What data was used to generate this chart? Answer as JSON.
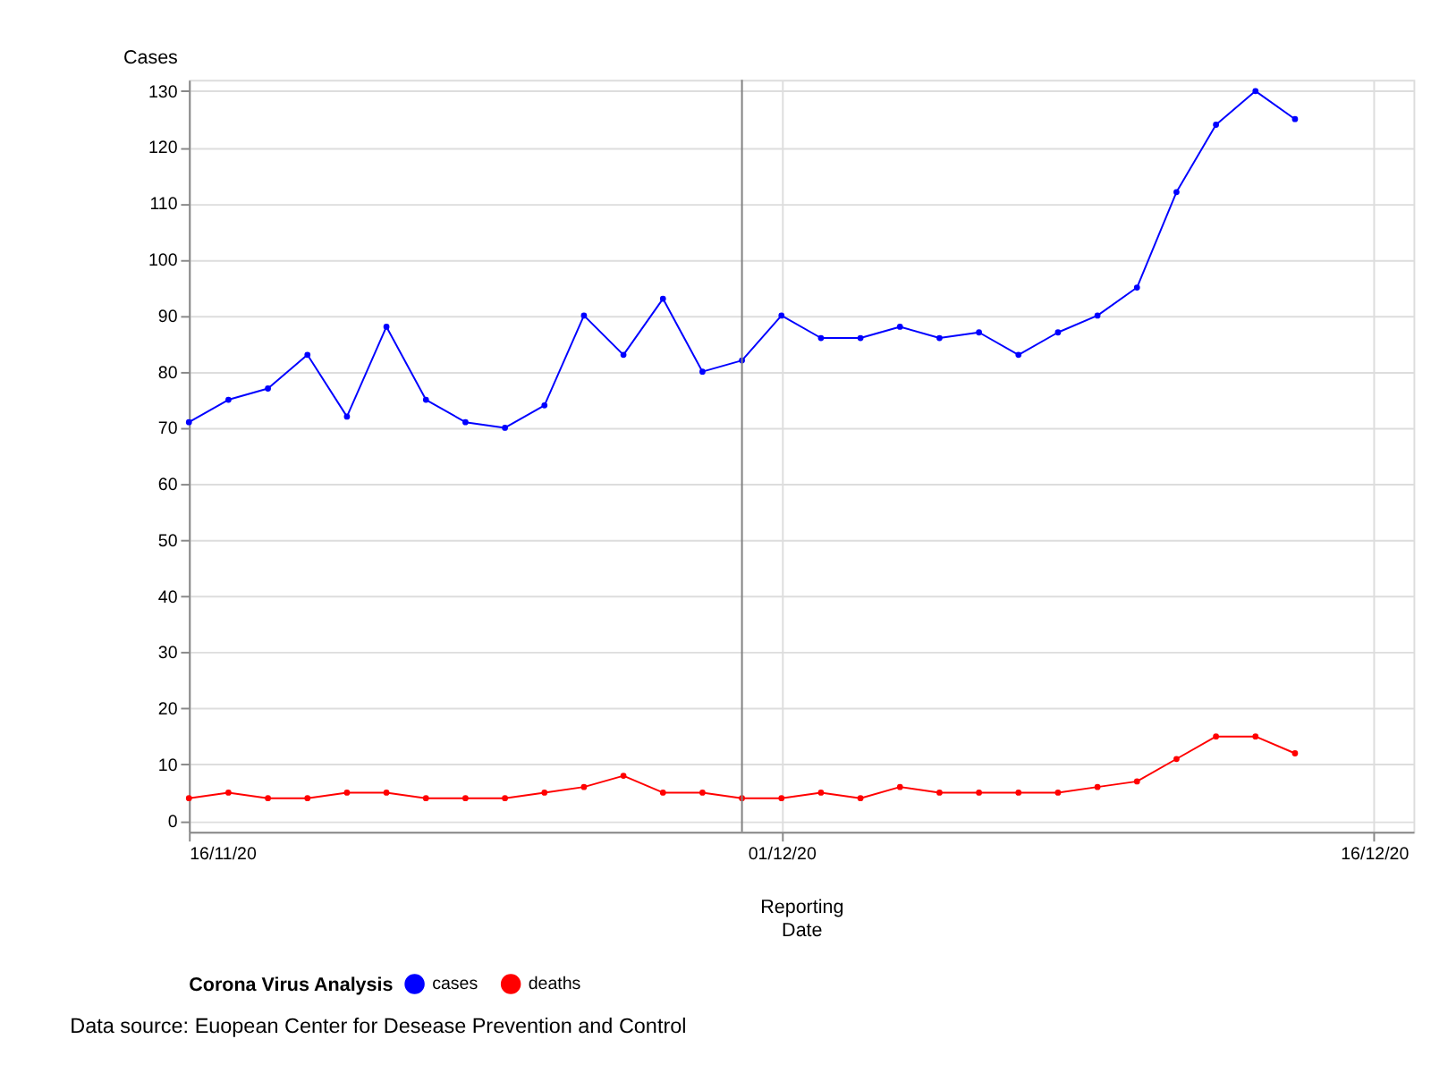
{
  "chart_data": {
    "type": "line",
    "x": [
      "2020-11-16",
      "2020-11-17",
      "2020-11-18",
      "2020-11-19",
      "2020-11-20",
      "2020-11-21",
      "2020-11-22",
      "2020-11-23",
      "2020-11-24",
      "2020-11-25",
      "2020-11-26",
      "2020-11-27",
      "2020-11-28",
      "2020-11-29",
      "2020-11-30",
      "2020-12-01",
      "2020-12-02",
      "2020-12-03",
      "2020-12-04",
      "2020-12-05",
      "2020-12-06",
      "2020-12-07",
      "2020-12-08",
      "2020-12-09",
      "2020-12-10",
      "2020-12-11",
      "2020-12-12",
      "2020-12-13",
      "2020-12-14"
    ],
    "series": [
      {
        "name": "cases",
        "color": "#0000ff",
        "values": [
          71,
          75,
          77,
          83,
          72,
          88,
          75,
          71,
          70,
          74,
          90,
          83,
          93,
          80,
          82,
          90,
          86,
          86,
          88,
          86,
          87,
          83,
          87,
          90,
          95,
          112,
          124,
          130,
          125
        ]
      },
      {
        "name": "deaths",
        "color": "#ff0000",
        "values": [
          4,
          5,
          4,
          4,
          5,
          5,
          4,
          4,
          4,
          5,
          6,
          8,
          5,
          5,
          4,
          4,
          5,
          4,
          6,
          5,
          5,
          5,
          5,
          6,
          7,
          11,
          15,
          15,
          12
        ]
      }
    ],
    "xlabel": "Reporting Date",
    "ylabel": "Cases",
    "legend_title": "Corona Virus Analysis",
    "xlim": [
      "2020-11-16",
      "2020-12-17"
    ],
    "xticks": [
      {
        "value": "2020-11-16",
        "label": "16/11/20"
      },
      {
        "value": "2020-12-01",
        "label": "01/12/20"
      },
      {
        "value": "2020-12-16",
        "label": "16/12/20"
      }
    ],
    "ylim": [
      -2,
      132
    ],
    "yticks": [
      0,
      10,
      20,
      30,
      40,
      50,
      60,
      70,
      80,
      90,
      100,
      110,
      120,
      130
    ],
    "ref_lines": [
      {
        "axis": "x",
        "value": "2020-11-30",
        "color": "#808080"
      }
    ],
    "annotations": [
      "Data source: Euopean Center for Desease Prevention and Control"
    ],
    "grid": true,
    "legend": "bottom",
    "marker": "circle",
    "line_style": "solid"
  }
}
